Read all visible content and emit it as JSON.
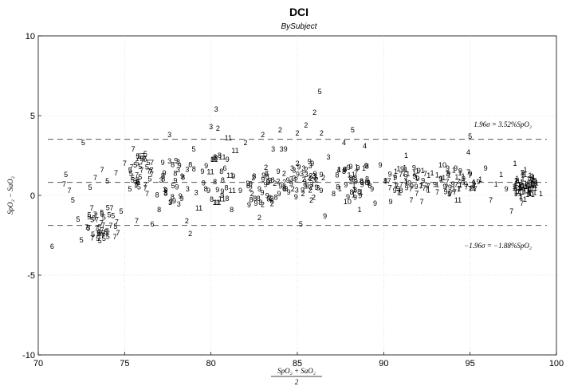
{
  "chart_data": {
    "type": "scatter",
    "title": "DCI",
    "subtitle": "BySubject",
    "xlabel_num": "SpO₂ + SaO₂",
    "xlabel_den": "2",
    "ylabel": "SpO₂ − SaO₂",
    "xlim": [
      70,
      100
    ],
    "ylim": [
      -10,
      10
    ],
    "xticks": [
      70,
      75,
      80,
      85,
      90,
      95,
      100
    ],
    "yticks": [
      -10,
      -5,
      0,
      5,
      10
    ],
    "xtick_labels": [
      "70",
      "75",
      "80",
      "85",
      "90",
      "95",
      "100"
    ],
    "ytick_labels": [
      "-10",
      "-5",
      "0",
      "5",
      "10"
    ],
    "grid": true,
    "bias": 0.82,
    "upper_loa": 3.52,
    "lower_loa": -1.88,
    "upper_label": "1.96σ = 3.52%SpO₂",
    "lower_label": "−1.96σ = −1.88%SpO₂",
    "points": [
      {
        "x": 70.8,
        "y": -3.2,
        "s": "6"
      },
      {
        "x": 71.5,
        "y": 0.7,
        "s": "7"
      },
      {
        "x": 71.6,
        "y": 1.3,
        "s": "5"
      },
      {
        "x": 71.8,
        "y": 0.3,
        "s": "7"
      },
      {
        "x": 72.0,
        "y": -0.3,
        "s": "5"
      },
      {
        "x": 72.3,
        "y": -1.5,
        "s": "5"
      },
      {
        "x": 72.5,
        "y": -2.8,
        "s": "5"
      },
      {
        "x": 72.6,
        "y": 3.3,
        "s": "5"
      },
      {
        "x": 72.8,
        "y": -2.0,
        "s": "7"
      },
      {
        "x": 73.0,
        "y": 0.5,
        "s": "5"
      },
      {
        "x": 73.1,
        "y": -0.8,
        "s": "7"
      },
      {
        "x": 73.3,
        "y": 1.1,
        "s": "7"
      },
      {
        "x": 73.5,
        "y": -2.4,
        "s": "5"
      },
      {
        "x": 73.7,
        "y": 1.6,
        "s": "7"
      },
      {
        "x": 73.8,
        "y": -2.7,
        "s": "5"
      },
      {
        "x": 74.0,
        "y": 0.9,
        "s": "5"
      },
      {
        "x": 74.2,
        "y": -1.9,
        "s": "7"
      },
      {
        "x": 74.5,
        "y": 1.4,
        "s": "7"
      },
      {
        "x": 74.8,
        "y": -1.0,
        "s": "5"
      },
      {
        "x": 75.0,
        "y": 2.0,
        "s": "7"
      },
      {
        "x": 75.3,
        "y": 0.4,
        "s": "5"
      },
      {
        "x": 75.5,
        "y": 2.9,
        "s": "7"
      },
      {
        "x": 75.7,
        "y": -1.6,
        "s": "7"
      },
      {
        "x": 75.9,
        "y": 1.8,
        "s": "5"
      },
      {
        "x": 76.2,
        "y": 2.6,
        "s": "5"
      },
      {
        "x": 76.3,
        "y": 0.1,
        "s": "7"
      },
      {
        "x": 76.6,
        "y": -1.8,
        "s": "6"
      },
      {
        "x": 77.0,
        "y": -0.9,
        "s": "8"
      },
      {
        "x": 77.3,
        "y": 1.4,
        "s": "9"
      },
      {
        "x": 77.6,
        "y": 3.8,
        "s": "3"
      },
      {
        "x": 77.8,
        "y": 0.6,
        "s": "5"
      },
      {
        "x": 78.1,
        "y": 2.1,
        "s": "3"
      },
      {
        "x": 78.3,
        "y": -0.2,
        "s": "9"
      },
      {
        "x": 78.6,
        "y": -1.6,
        "s": "2"
      },
      {
        "x": 78.8,
        "y": -2.4,
        "s": "2"
      },
      {
        "x": 79.0,
        "y": 2.9,
        "s": "5"
      },
      {
        "x": 79.3,
        "y": -0.8,
        "s": "11"
      },
      {
        "x": 79.5,
        "y": 1.5,
        "s": "9"
      },
      {
        "x": 79.7,
        "y": 0.4,
        "s": "8"
      },
      {
        "x": 80.0,
        "y": 4.3,
        "s": "3"
      },
      {
        "x": 80.3,
        "y": 5.4,
        "s": "3"
      },
      {
        "x": 80.4,
        "y": 4.2,
        "s": "2"
      },
      {
        "x": 80.5,
        "y": 2.5,
        "s": "8"
      },
      {
        "x": 80.8,
        "y": 1.7,
        "s": "6"
      },
      {
        "x": 81.0,
        "y": 3.6,
        "s": "11"
      },
      {
        "x": 81.2,
        "y": -0.9,
        "s": "8"
      },
      {
        "x": 81.4,
        "y": 2.8,
        "s": "11"
      },
      {
        "x": 81.7,
        "y": 0.3,
        "s": "9"
      },
      {
        "x": 82.0,
        "y": 3.3,
        "s": "2"
      },
      {
        "x": 82.2,
        "y": -0.6,
        "s": "9"
      },
      {
        "x": 82.5,
        "y": 1.2,
        "s": "8"
      },
      {
        "x": 82.8,
        "y": -1.4,
        "s": "2"
      },
      {
        "x": 83.0,
        "y": 3.8,
        "s": "2"
      },
      {
        "x": 83.3,
        "y": 0.8,
        "s": "8"
      },
      {
        "x": 83.6,
        "y": 2.9,
        "s": "3"
      },
      {
        "x": 83.9,
        "y": 1.5,
        "s": "9"
      },
      {
        "x": 84.0,
        "y": 4.1,
        "s": "2"
      },
      {
        "x": 84.2,
        "y": 2.9,
        "s": "39"
      },
      {
        "x": 84.5,
        "y": 0.2,
        "s": "9"
      },
      {
        "x": 84.7,
        "y": 1.7,
        "s": "3"
      },
      {
        "x": 85.0,
        "y": 3.9,
        "s": "2"
      },
      {
        "x": 85.2,
        "y": -1.8,
        "s": "5"
      },
      {
        "x": 85.5,
        "y": 4.4,
        "s": "2"
      },
      {
        "x": 85.7,
        "y": 1.1,
        "s": "2"
      },
      {
        "x": 86.0,
        "y": 5.2,
        "s": "2"
      },
      {
        "x": 86.1,
        "y": 0.5,
        "s": "9"
      },
      {
        "x": 86.3,
        "y": 6.5,
        "s": "5"
      },
      {
        "x": 86.4,
        "y": 3.9,
        "s": "2"
      },
      {
        "x": 86.6,
        "y": -1.3,
        "s": "9"
      },
      {
        "x": 86.8,
        "y": 2.4,
        "s": "3"
      },
      {
        "x": 87.1,
        "y": 0.1,
        "s": "8"
      },
      {
        "x": 87.4,
        "y": 1.6,
        "s": "4"
      },
      {
        "x": 87.7,
        "y": 3.3,
        "s": "4"
      },
      {
        "x": 87.9,
        "y": -0.4,
        "s": "10"
      },
      {
        "x": 88.2,
        "y": 4.1,
        "s": "5"
      },
      {
        "x": 88.4,
        "y": 1.4,
        "s": "7"
      },
      {
        "x": 88.6,
        "y": -0.9,
        "s": "1"
      },
      {
        "x": 88.9,
        "y": 3.1,
        "s": "4"
      },
      {
        "x": 89.2,
        "y": 0.6,
        "s": "8"
      },
      {
        "x": 89.5,
        "y": -0.5,
        "s": "9"
      },
      {
        "x": 89.8,
        "y": 1.9,
        "s": "9"
      },
      {
        "x": 90.1,
        "y": 0.9,
        "s": "8"
      },
      {
        "x": 90.4,
        "y": -0.4,
        "s": "9"
      },
      {
        "x": 90.7,
        "y": 1.5,
        "s": "1"
      },
      {
        "x": 91.0,
        "y": 0.3,
        "s": "8"
      },
      {
        "x": 91.3,
        "y": 2.5,
        "s": "1"
      },
      {
        "x": 91.6,
        "y": -0.3,
        "s": "7"
      },
      {
        "x": 91.9,
        "y": 1.1,
        "s": "1"
      },
      {
        "x": 92.2,
        "y": -0.4,
        "s": "7"
      },
      {
        "x": 92.5,
        "y": 0.6,
        "s": "7"
      },
      {
        "x": 92.8,
        "y": 1.4,
        "s": "1"
      },
      {
        "x": 93.1,
        "y": 0.2,
        "s": "7"
      },
      {
        "x": 93.4,
        "y": 1.9,
        "s": "10"
      },
      {
        "x": 93.7,
        "y": 1.7,
        "s": "9"
      },
      {
        "x": 94.0,
        "y": 0.7,
        "s": "9"
      },
      {
        "x": 94.3,
        "y": -0.3,
        "s": "11"
      },
      {
        "x": 94.6,
        "y": 1.2,
        "s": "1"
      },
      {
        "x": 94.9,
        "y": 2.7,
        "s": "4"
      },
      {
        "x": 95.0,
        "y": 3.7,
        "s": "5"
      },
      {
        "x": 95.3,
        "y": 0.4,
        "s": "7"
      },
      {
        "x": 95.6,
        "y": 1.0,
        "s": "1"
      },
      {
        "x": 95.9,
        "y": 1.7,
        "s": "9"
      },
      {
        "x": 96.2,
        "y": -0.3,
        "s": "7"
      },
      {
        "x": 96.5,
        "y": 0.7,
        "s": "1"
      },
      {
        "x": 96.8,
        "y": 1.3,
        "s": "1"
      },
      {
        "x": 97.1,
        "y": 0.4,
        "s": "9"
      },
      {
        "x": 97.4,
        "y": -1.0,
        "s": "7"
      },
      {
        "x": 97.6,
        "y": 2.0,
        "s": "1"
      },
      {
        "x": 97.8,
        "y": 0.9,
        "s": "1"
      },
      {
        "x": 98.0,
        "y": -0.5,
        "s": "7"
      },
      {
        "x": 98.2,
        "y": 1.6,
        "s": "1"
      },
      {
        "x": 98.4,
        "y": 0.2,
        "s": "1"
      },
      {
        "x": 98.6,
        "y": 1.2,
        "s": "1"
      },
      {
        "x": 98.8,
        "y": 0.6,
        "s": "1"
      },
      {
        "x": 99.1,
        "y": 0.1,
        "s": "1"
      }
    ],
    "cluster_points": [
      {
        "cx": 73.8,
        "cy": -1.8,
        "rx": 1.0,
        "ry": 1.2,
        "n": 40,
        "labels": [
          "5",
          "7"
        ]
      },
      {
        "cx": 76.0,
        "cy": 1.5,
        "rx": 0.7,
        "ry": 1.1,
        "n": 35,
        "labels": [
          "5",
          "7"
        ]
      },
      {
        "cx": 78.0,
        "cy": 0.8,
        "rx": 1.3,
        "ry": 1.6,
        "n": 30,
        "labels": [
          "9",
          "3",
          "8"
        ]
      },
      {
        "cx": 80.5,
        "cy": 1.0,
        "rx": 1.0,
        "ry": 1.5,
        "n": 25,
        "labels": [
          "8",
          "11",
          "9"
        ]
      },
      {
        "cx": 83.2,
        "cy": 0.6,
        "rx": 1.3,
        "ry": 1.3,
        "n": 40,
        "labels": [
          "9",
          "2",
          "8"
        ]
      },
      {
        "cx": 85.6,
        "cy": 0.9,
        "rx": 1.0,
        "ry": 1.4,
        "n": 40,
        "labels": [
          "2",
          "3",
          "9"
        ]
      },
      {
        "cx": 88.3,
        "cy": 1.0,
        "rx": 1.2,
        "ry": 1.2,
        "n": 40,
        "labels": [
          "9",
          "8",
          "1"
        ]
      },
      {
        "cx": 91.5,
        "cy": 0.9,
        "rx": 1.4,
        "ry": 0.9,
        "n": 45,
        "labels": [
          "1",
          "7",
          "9"
        ]
      },
      {
        "cx": 94.2,
        "cy": 0.9,
        "rx": 1.3,
        "ry": 0.9,
        "n": 45,
        "labels": [
          "1",
          "9",
          "7"
        ]
      },
      {
        "cx": 98.2,
        "cy": 0.6,
        "rx": 0.7,
        "ry": 0.9,
        "n": 70,
        "labels": [
          "1"
        ]
      }
    ]
  }
}
